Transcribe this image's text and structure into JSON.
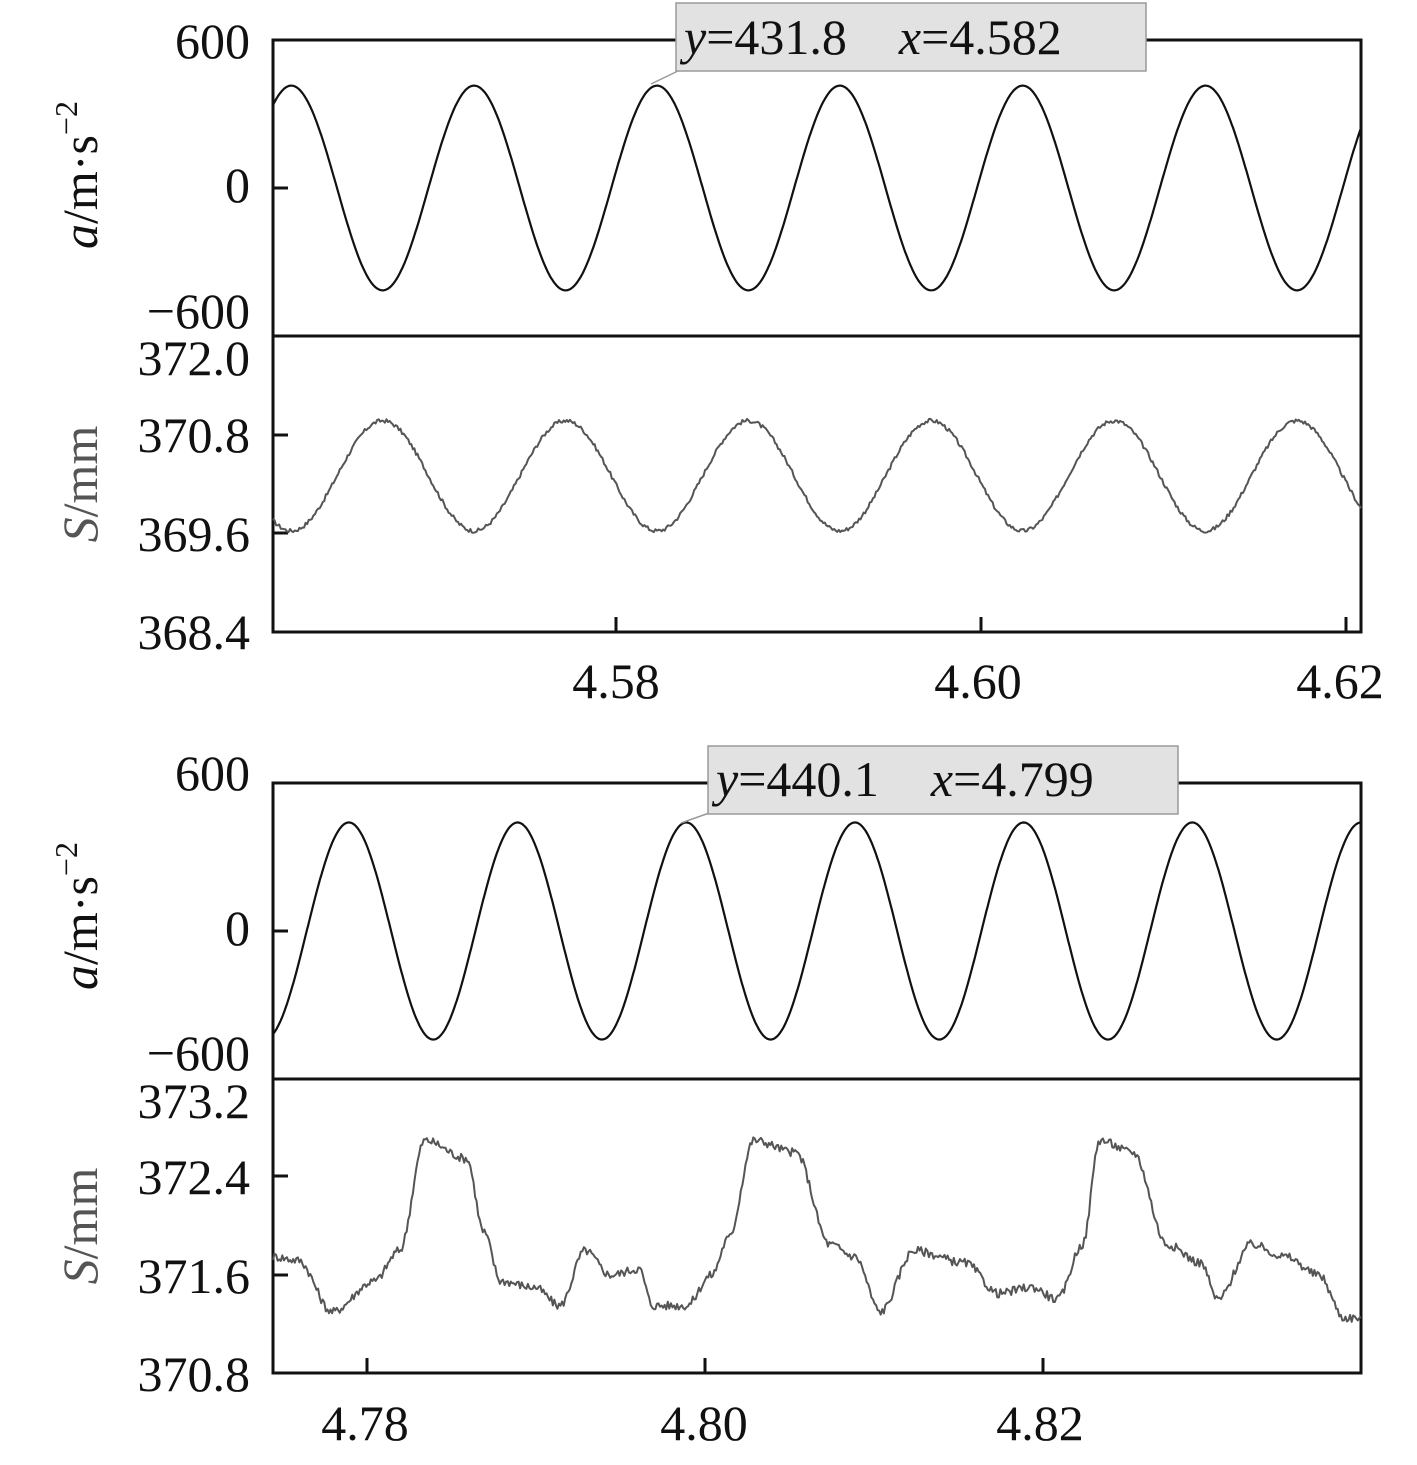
{
  "colors": {
    "acceleration_line": "#111111",
    "displacement_line": "#555555",
    "annotation_bg": "#e2e2e2"
  },
  "chart_data": [
    {
      "type": "line",
      "panel": "top",
      "x_ticks": [
        "4.58",
        "4.60",
        "4.62"
      ],
      "xlim": [
        4.561,
        4.6205
      ],
      "acceleration": {
        "ylabel_var": "a",
        "ylabel_unit": "/m·s",
        "ylabel_exp": "−2",
        "y_ticks": [
          "600",
          "0",
          "−600"
        ],
        "ylim": [
          -600,
          600
        ],
        "amplitude": 415,
        "peak_x": [
          4.5715,
          4.5815,
          4.582,
          4.592,
          4.602,
          4.612
        ],
        "trough_x": [
          4.5665,
          4.5765,
          4.5865,
          4.5965,
          4.6065,
          4.6165
        ],
        "annotation": {
          "y_var": "y",
          "y_val": "=431.8",
          "x_var": "x",
          "x_val": "=4.582",
          "x": 4.582,
          "y": 431.8
        }
      },
      "displacement": {
        "ylabel_var": "S",
        "ylabel_unit": "/mm",
        "y_ticks": [
          "372.0",
          "370.8",
          "369.6",
          "368.4"
        ],
        "ylim": [
          368.4,
          372.0
        ],
        "peak_x": [
          4.567,
          4.577,
          4.587,
          4.597,
          4.607,
          4.617
        ],
        "peak_y": [
          371.0,
          370.95,
          370.95,
          370.95,
          370.95,
          370.95
        ],
        "trough_x": [
          4.562,
          4.572,
          4.582,
          4.592,
          4.602,
          4.612
        ],
        "trough_y": [
          369.65,
          369.65,
          369.6,
          369.65,
          369.6,
          369.65
        ]
      }
    },
    {
      "type": "line",
      "panel": "bottom",
      "x_ticks": [
        "4.78",
        "4.80",
        "4.82"
      ],
      "xlim": [
        4.7745,
        4.839
      ],
      "acceleration": {
        "ylabel_var": "a",
        "ylabel_unit": "/m·s",
        "ylabel_exp": "−2",
        "y_ticks": [
          "600",
          "0",
          "−600"
        ],
        "ylim": [
          -600,
          600
        ],
        "amplitude": 440,
        "peak_x": [
          4.779,
          4.789,
          4.799,
          4.809,
          4.819,
          4.829,
          4.839
        ],
        "trough_x": [
          4.784,
          4.794,
          4.804,
          4.814,
          4.824,
          4.834
        ],
        "annotation": {
          "y_var": "y",
          "y_val": "=440.1",
          "x_var": "x",
          "x_val": "=4.799",
          "x": 4.799,
          "y": 440.1
        }
      },
      "displacement": {
        "ylabel_var": "S",
        "ylabel_unit": "/mm",
        "y_ticks": [
          "373.2",
          "372.4",
          "371.6",
          "370.8"
        ],
        "ylim": [
          370.8,
          373.2
        ],
        "keypoints": [
          [
            4.7745,
            371.75
          ],
          [
            4.776,
            371.72
          ],
          [
            4.778,
            371.3
          ],
          [
            4.7805,
            371.55
          ],
          [
            4.782,
            371.8
          ],
          [
            4.7835,
            372.7
          ],
          [
            4.786,
            372.55
          ],
          [
            4.787,
            371.95
          ],
          [
            4.788,
            371.55
          ],
          [
            4.79,
            371.5
          ],
          [
            4.7915,
            371.35
          ],
          [
            4.793,
            371.8
          ],
          [
            4.7945,
            371.6
          ],
          [
            4.7962,
            371.65
          ],
          [
            4.797,
            371.35
          ],
          [
            4.799,
            371.35
          ],
          [
            4.8005,
            371.6
          ],
          [
            4.8015,
            371.9
          ],
          [
            4.803,
            372.7
          ],
          [
            4.8055,
            372.6
          ],
          [
            4.8075,
            371.85
          ],
          [
            4.809,
            371.75
          ],
          [
            4.8105,
            371.3
          ],
          [
            4.8125,
            371.8
          ],
          [
            4.8155,
            371.7
          ],
          [
            4.8175,
            371.45
          ],
          [
            4.8195,
            371.5
          ],
          [
            4.821,
            371.4
          ],
          [
            4.8225,
            371.85
          ],
          [
            4.8235,
            372.7
          ],
          [
            4.8255,
            372.6
          ],
          [
            4.8275,
            371.85
          ],
          [
            4.8295,
            371.7
          ],
          [
            4.8305,
            371.4
          ],
          [
            4.8325,
            371.85
          ],
          [
            4.8345,
            371.75
          ],
          [
            4.8365,
            371.6
          ],
          [
            4.838,
            371.25
          ],
          [
            4.839,
            371.25
          ]
        ]
      }
    }
  ]
}
